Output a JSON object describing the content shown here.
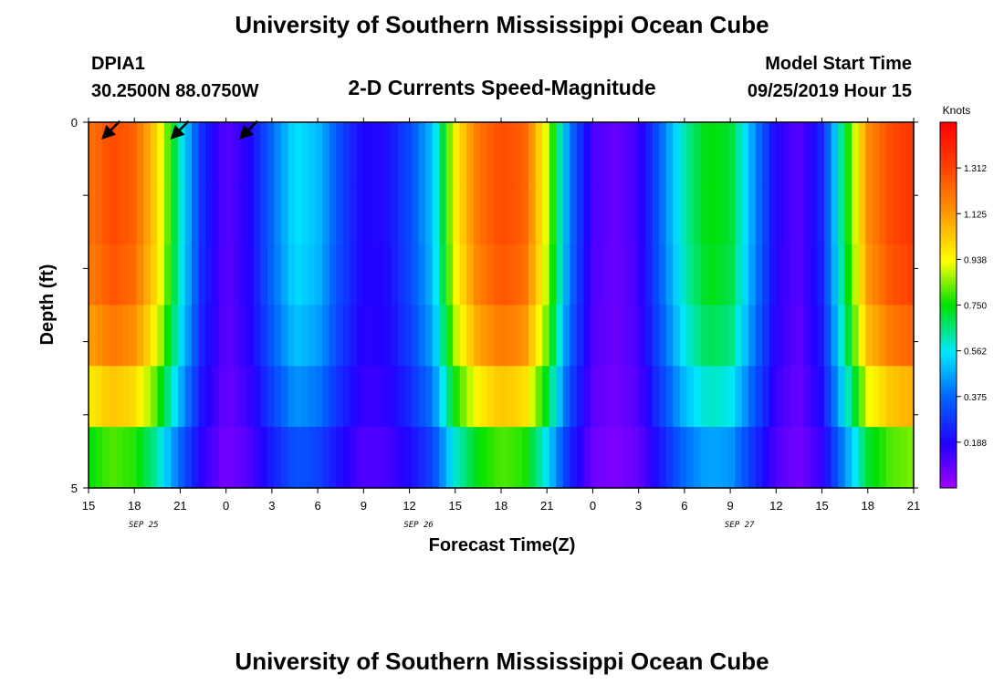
{
  "page": {
    "title_top": "University of Southern Mississippi Ocean Cube",
    "title_bottom": "University of Southern Mississippi Ocean Cube",
    "station": "DPIA1",
    "location": "30.2500N 88.0750W",
    "plot_title": "2-D Currents Speed-Magnitude",
    "model_start_label": "Model Start Time",
    "model_start_value": "09/25/2019 Hour 15"
  },
  "chart_data": {
    "type": "heatmap",
    "xlabel": "Forecast Time(Z)",
    "ylabel": "Depth (ft)",
    "x_tick_labels": [
      "15",
      "18",
      "21",
      "0",
      "3",
      "6",
      "9",
      "12",
      "15",
      "18",
      "21",
      "0",
      "3",
      "6",
      "9",
      "12",
      "15",
      "18",
      "21"
    ],
    "date_labels": [
      {
        "label": "SEP 25",
        "tick_index": 1
      },
      {
        "label": "SEP 26",
        "tick_index": 7
      },
      {
        "label": "SEP 27",
        "tick_index": 14
      }
    ],
    "y_tick_labels": [
      {
        "label": "0",
        "depth": 0
      },
      {
        "label": "5",
        "depth": 5
      }
    ],
    "ylim": [
      0,
      5
    ],
    "colorbar": {
      "unit": "Knots",
      "range": [
        0,
        1.5
      ],
      "ticks": [
        "1.312",
        "1.125",
        "0.938",
        "0.750",
        "0.562",
        "0.375",
        "0.188"
      ]
    },
    "speed_profile_knots": [
      [
        0,
        1.2
      ],
      [
        1,
        1.3
      ],
      [
        2,
        1.25
      ],
      [
        3,
        1.0
      ],
      [
        4,
        0.6
      ],
      [
        5,
        0.25
      ],
      [
        6,
        0.1
      ],
      [
        7,
        0.18
      ],
      [
        8,
        0.38
      ],
      [
        9,
        0.55
      ],
      [
        10,
        0.5
      ],
      [
        11,
        0.32
      ],
      [
        12,
        0.18
      ],
      [
        13,
        0.2
      ],
      [
        14,
        0.32
      ],
      [
        15,
        0.5
      ],
      [
        16,
        0.95
      ],
      [
        17,
        1.2
      ],
      [
        18,
        1.3
      ],
      [
        19,
        1.25
      ],
      [
        20,
        0.9
      ],
      [
        21,
        0.4
      ],
      [
        22,
        0.12
      ],
      [
        23,
        0.08
      ],
      [
        24,
        0.14
      ],
      [
        25,
        0.38
      ],
      [
        26,
        0.62
      ],
      [
        27,
        0.75
      ],
      [
        28,
        0.72
      ],
      [
        29,
        0.45
      ],
      [
        30,
        0.18
      ],
      [
        31,
        0.1
      ],
      [
        32,
        0.25
      ],
      [
        33,
        0.7
      ],
      [
        34,
        1.15
      ],
      [
        35,
        1.3
      ],
      [
        36,
        1.35
      ]
    ],
    "depth_layer_factors": [
      1.0,
      1.0,
      0.98,
      0.92,
      0.8,
      0.62
    ],
    "vectors": [
      {
        "t": 1,
        "d": 0.1,
        "dir": 135
      },
      {
        "t": 4,
        "d": 0.1,
        "dir": 135
      },
      {
        "t": 7,
        "d": 0.1,
        "dir": 135
      }
    ]
  }
}
